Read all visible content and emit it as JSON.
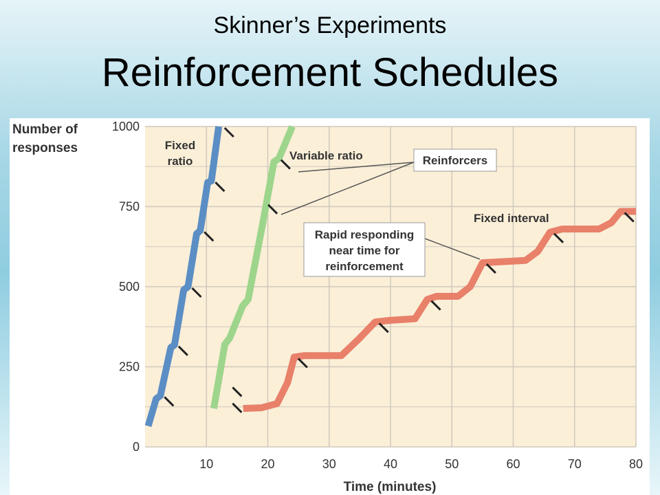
{
  "slide": {
    "subtitle": "Skinner’s Experiments",
    "title": "Reinforcement Schedules"
  },
  "chart_data": {
    "type": "line",
    "ylabel_line1": "Number of",
    "ylabel_line2": "responses",
    "xlabel": "Time (minutes)",
    "xlim": [
      0,
      80
    ],
    "ylim": [
      0,
      1000
    ],
    "x_ticks": [
      10,
      20,
      30,
      40,
      50,
      60,
      70,
      80
    ],
    "y_ticks": [
      0,
      250,
      500,
      750,
      1000
    ],
    "grid": true,
    "colors": {
      "plot_bg": "#fbefd8",
      "grid": "#cfc8bb",
      "fixed_ratio": "#5b8ec4",
      "variable_ratio": "#9ed58c",
      "fixed_interval": "#e8806a",
      "tick_mark": "#222222"
    },
    "series": [
      {
        "name_line1": "Fixed",
        "name_line2": "ratio",
        "points": [
          [
            0.5,
            65
          ],
          [
            1.8,
            150
          ],
          [
            2.5,
            160
          ],
          [
            4.2,
            310
          ],
          [
            4.8,
            318
          ],
          [
            6.3,
            490
          ],
          [
            7,
            500
          ],
          [
            8.4,
            665
          ],
          [
            9,
            675
          ],
          [
            10.2,
            825
          ],
          [
            10.8,
            830
          ],
          [
            12,
            1000
          ]
        ],
        "reinforcers": [
          [
            2.5,
            160
          ],
          [
            4.8,
            318
          ],
          [
            7,
            500
          ],
          [
            9,
            675
          ],
          [
            10.8,
            830
          ],
          [
            12.3,
            1000
          ]
        ]
      },
      {
        "name": "Variable ratio",
        "points": [
          [
            11.2,
            120
          ],
          [
            13,
            320
          ],
          [
            13.8,
            340
          ],
          [
            15.9,
            440
          ],
          [
            16.8,
            460
          ],
          [
            19.2,
            700
          ],
          [
            21,
            890
          ],
          [
            21.8,
            900
          ],
          [
            24,
            1000
          ]
        ],
        "reinforcers": [
          [
            13.6,
            140
          ],
          [
            13.6,
            190
          ],
          [
            21.5,
            900
          ],
          [
            19.4,
            760
          ]
        ]
      },
      {
        "name": "Fixed interval",
        "points": [
          [
            16,
            120
          ],
          [
            19,
            122
          ],
          [
            21.5,
            135
          ],
          [
            23.2,
            200
          ],
          [
            24.3,
            280
          ],
          [
            26,
            285
          ],
          [
            32,
            285
          ],
          [
            35,
            340
          ],
          [
            37.5,
            390
          ],
          [
            40,
            395
          ],
          [
            44,
            400
          ],
          [
            46,
            460
          ],
          [
            47.5,
            470
          ],
          [
            51,
            470
          ],
          [
            53,
            500
          ],
          [
            55,
            575
          ],
          [
            58,
            578
          ],
          [
            62,
            582
          ],
          [
            64,
            610
          ],
          [
            66,
            670
          ],
          [
            68,
            680
          ],
          [
            74,
            680
          ],
          [
            76,
            700
          ],
          [
            77.5,
            735
          ],
          [
            80,
            735
          ]
        ],
        "reinforcers": [
          [
            24.3,
            280
          ],
          [
            37.5,
            390
          ],
          [
            46,
            460
          ],
          [
            55,
            575
          ],
          [
            66,
            670
          ],
          [
            77.5,
            735
          ]
        ]
      }
    ],
    "annotations": {
      "reinforcers": "Reinforcers",
      "rapid_line1": "Rapid responding",
      "rapid_line2": "near time for",
      "rapid_line3": "reinforcement"
    }
  }
}
